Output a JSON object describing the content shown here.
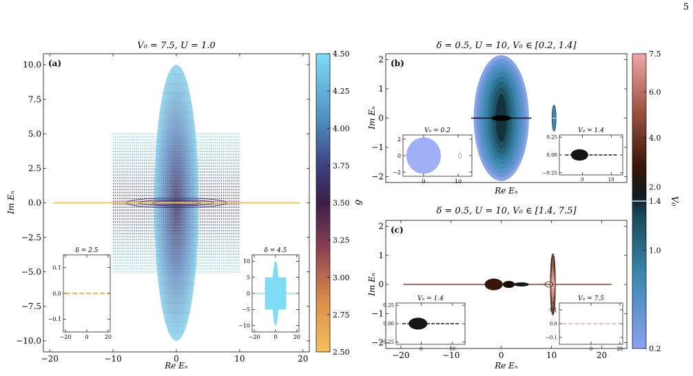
{
  "page_number": "5",
  "colors": {
    "delta_low": "#f5c15c",
    "delta_mid": "#3d2a60",
    "delta_high": "#7fdcf5",
    "v0_low": "#8ca0f0",
    "v0_mid": "#0e1a22",
    "v0_high": "#f0a8a8",
    "axis": "#000000"
  },
  "chart_data": [
    {
      "id": "a",
      "type": "scatter",
      "panel_label": "(a)",
      "title": "V₀ = 7.5,  U = 1.0",
      "xlabel": "Re Eₙ",
      "ylabel": "Im Eₙ",
      "xlim": [
        -21,
        21
      ],
      "ylim": [
        -10.8,
        10.8
      ],
      "xticks": [
        -20,
        -10,
        0,
        10,
        20
      ],
      "xtick_labels": [
        "−20",
        "−10",
        "0",
        "10",
        "20"
      ],
      "yticks": [
        -10,
        -7.5,
        -5,
        -2.5,
        0,
        2.5,
        5,
        7.5,
        10
      ],
      "ytick_labels": [
        "−10.0",
        "−7.5",
        "−5.0",
        "−2.5",
        "0.0",
        "2.5",
        "5.0",
        "7.5",
        "10.0"
      ],
      "spectra": {
        "real_line": {
          "x": [
            -19.5,
            19.5
          ],
          "color_value_delta": 2.5
        },
        "band_x": [
          -10,
          10
        ],
        "band_y": [
          -5,
          5
        ],
        "ellipse_x_half": 3.5,
        "ellipse_y_half": 10
      },
      "colorbar": {
        "label": "δ",
        "range": [
          2.5,
          4.5
        ],
        "ticks": [
          2.5,
          2.75,
          3.0,
          3.25,
          3.5,
          3.75,
          4.0,
          4.25,
          4.5
        ],
        "tick_labels": [
          "2.50",
          "2.75",
          "3.00",
          "3.25",
          "3.50",
          "3.75",
          "4.00",
          "4.25",
          "4.50"
        ]
      },
      "insets": [
        {
          "title": "δ = 2.5",
          "xlim": [
            -22,
            22
          ],
          "ylim": [
            -0.15,
            0.15
          ],
          "xticks": [
            -20,
            0,
            20
          ],
          "xtick_labels": [
            "−20",
            "0",
            "20"
          ],
          "yticks": [
            -0.1,
            0.0,
            0.1
          ],
          "ytick_labels": [
            "−0.1",
            "0.0",
            "0.1"
          ],
          "style": "dashed-line",
          "color": "#f5c15c"
        },
        {
          "title": "δ = 4.5",
          "xlim": [
            -22,
            22
          ],
          "ylim": [
            -12,
            12
          ],
          "xticks": [
            -20,
            0,
            20
          ],
          "xtick_labels": [
            "−20",
            "0",
            "20"
          ],
          "yticks": [
            -10,
            -5,
            0,
            5,
            10
          ],
          "ytick_labels": [
            "−10",
            "−5",
            "0",
            "5",
            "10"
          ],
          "style": "cross",
          "color": "#7fdcf5"
        }
      ]
    },
    {
      "id": "b",
      "type": "scatter",
      "panel_label": "(b)",
      "title": "δ = 0.5,  U = 10,  V₀ ∈ [0.2, 1.4]",
      "xlabel": "Re Eₙ",
      "ylabel": "Im Eₙ",
      "xlim": [
        -23,
        25
      ],
      "ylim": [
        -2.2,
        2.2
      ],
      "yticks": [
        -2,
        -1,
        0,
        1,
        2
      ],
      "ytick_labels": [
        "−2",
        "−1",
        "0",
        "1",
        "2"
      ],
      "spectra": {
        "ellipse_center_x": 0,
        "ellipse_x_half": 5.5,
        "ellipse_y_half": 2.15,
        "line_x": [
          -6,
          6
        ],
        "satellite_x": 10.5,
        "satellite_y_half": 0.45
      },
      "insets": [
        {
          "title": "V₀ = 0.2",
          "xlim": [
            -6,
            14
          ],
          "ylim": [
            -2.5,
            2.5
          ],
          "xticks": [
            0,
            10
          ],
          "xtick_labels": [
            "0",
            "10"
          ],
          "yticks": [
            -2,
            0,
            2
          ],
          "ytick_labels": [
            "−2",
            "0",
            "2"
          ],
          "color": "#9fb0f5"
        },
        {
          "title": "V₀ = 1.4",
          "xlim": [
            -8,
            14
          ],
          "ylim": [
            -0.28,
            0.28
          ],
          "xticks": [
            0,
            10
          ],
          "xtick_labels": [
            "0",
            "10"
          ],
          "yticks": [
            -0.25,
            0.0,
            0.25
          ],
          "ytick_labels": [
            "−0.25",
            "0.00",
            "0.25"
          ],
          "color": "#151515"
        }
      ]
    },
    {
      "id": "c",
      "type": "scatter",
      "panel_label": "(c)",
      "title": "δ = 0.5,  U = 10,  V₀ ∈ [1.4, 7.5]",
      "xlabel": "Re Eₙ",
      "ylabel": "Im Eₙ",
      "xlim": [
        -23,
        25
      ],
      "ylim": [
        -2.2,
        2.2
      ],
      "xticks": [
        -20,
        -10,
        0,
        10,
        20
      ],
      "xtick_labels": [
        "−20",
        "−10",
        "0",
        "10",
        "20"
      ],
      "yticks": [
        -2,
        -1,
        0,
        1,
        2
      ],
      "ytick_labels": [
        "−2",
        "−1",
        "0",
        "1",
        "2"
      ],
      "spectra": {
        "line_x": [
          -19.5,
          22
        ],
        "blob_center_x": -1.5,
        "satellite_x": 10,
        "satellite_y_half": 1.05
      },
      "colorbar": {
        "label": "V₀",
        "ticks": [
          0.2,
          1.0,
          1.4,
          2.0,
          4.0,
          6.0,
          7.5
        ],
        "tick_labels": [
          "0.2",
          "1.0",
          "1.4",
          "2.0",
          "4.0",
          "6.0",
          "7.5"
        ]
      },
      "insets": [
        {
          "title": "V₀ = 1.4",
          "xlim": [
            -8,
            14
          ],
          "ylim": [
            -0.28,
            0.28
          ],
          "xticks": [
            0,
            10
          ],
          "xtick_labels": [
            "0",
            "10"
          ],
          "yticks": [
            -0.25,
            0.0,
            0.25
          ],
          "ytick_labels": [
            "−0.25",
            "0.00",
            "0.25"
          ],
          "color": "#151515"
        },
        {
          "title": "V₀ = 7.5",
          "xlim": [
            -22,
            22
          ],
          "ylim": [
            -0.15,
            0.15
          ],
          "xticks": [
            0,
            20
          ],
          "xtick_labels": [
            "0",
            "20"
          ],
          "yticks": [
            -0.1,
            0.0,
            0.1
          ],
          "ytick_labels": [
            "−0.1",
            "0.0",
            "0.1"
          ],
          "color": "#f0a8a8"
        }
      ]
    }
  ]
}
